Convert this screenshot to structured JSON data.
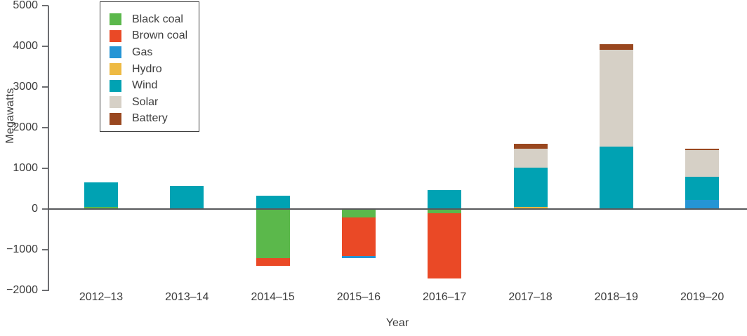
{
  "chart_data": {
    "type": "bar",
    "stacked": true,
    "title": "",
    "xlabel": "Year",
    "ylabel": "Megawatts",
    "ylim": [
      -2000,
      5000
    ],
    "yticks": [
      5000,
      4000,
      3000,
      2000,
      1000,
      0,
      -1000,
      -2000
    ],
    "grid": false,
    "legend_position": "top-left",
    "categories": [
      "2012–13",
      "2013–14",
      "2014–15",
      "2015–16",
      "2016–17",
      "2017–18",
      "2018–19",
      "2019–20"
    ],
    "series": [
      {
        "name": "Black coal",
        "color": "#5bb84b",
        "values": [
          50,
          0,
          -1200,
          -200,
          -100,
          0,
          0,
          0
        ]
      },
      {
        "name": "Brown coal",
        "color": "#ea4926",
        "values": [
          0,
          0,
          -200,
          -950,
          -1600,
          0,
          0,
          0
        ]
      },
      {
        "name": "Gas",
        "color": "#2595d5",
        "values": [
          0,
          0,
          0,
          -50,
          0,
          0,
          0,
          220
        ]
      },
      {
        "name": "Hydro",
        "color": "#eeba43",
        "values": [
          0,
          0,
          0,
          0,
          0,
          60,
          0,
          0
        ]
      },
      {
        "name": "Wind",
        "color": "#00a2b3",
        "values": [
          600,
          570,
          330,
          0,
          460,
          960,
          1530,
          570
        ]
      },
      {
        "name": "Solar",
        "color": "#d6d0c6",
        "values": [
          0,
          0,
          0,
          0,
          0,
          460,
          2390,
          660
        ]
      },
      {
        "name": "Battery",
        "color": "#99471f",
        "values": [
          0,
          0,
          0,
          0,
          0,
          130,
          130,
          40
        ]
      }
    ]
  },
  "colors": {
    "axis": "#6d6e71",
    "zero_line": "#58595b",
    "text": "#3d3d3d"
  }
}
